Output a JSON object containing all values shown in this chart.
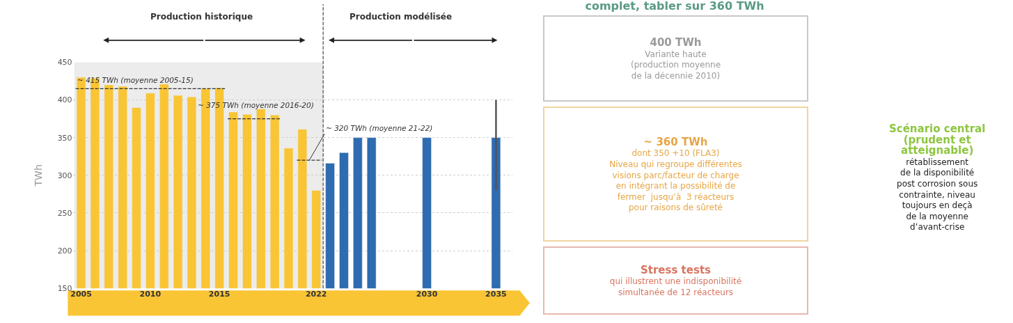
{
  "chart_data": {
    "type": "bar",
    "title": "complet, tabler sur 360 TWh",
    "ylabel": "TWh",
    "series": [
      {
        "color": "#f9c534",
        "x": [
          2005,
          2006,
          2007,
          2008,
          2009,
          2010,
          2011,
          2012,
          2013,
          2014,
          2015,
          2016,
          2017,
          2018,
          2019,
          2020,
          2021,
          2022
        ],
        "values": [
          430,
          429,
          420,
          418,
          390,
          409,
          421,
          406,
          404,
          415,
          416,
          384,
          381,
          388,
          380,
          336,
          361,
          280
        ]
      },
      {
        "color": "#2e6bb0",
        "x": [
          2023,
          2024,
          2025,
          2026,
          2030,
          2035
        ],
        "values": [
          316,
          330,
          350,
          350,
          350,
          350
        ],
        "errors": [
          null,
          null,
          null,
          null,
          null,
          [
            280,
            400
          ]
        ]
      },
      {
        "type": "line",
        "color": "#333333",
        "line_style": "dashed",
        "x": [
          2004.6,
          2015.4
        ],
        "values": [
          415,
          415
        ]
      },
      {
        "type": "line",
        "color": "#333333",
        "line_style": "dashed",
        "x": [
          2015.6,
          2019.4
        ],
        "values": [
          375,
          375
        ]
      },
      {
        "type": "line",
        "color": "#333333",
        "line_style": "dashed",
        "x": [
          2020.6,
          2022.4
        ],
        "values": [
          320,
          320
        ]
      }
    ],
    "xlim": [
      2004.4,
      2036.2
    ],
    "xticks": [
      2005,
      2010,
      2015,
      2022,
      2030,
      2035
    ],
    "ylim": [
      150,
      450
    ],
    "yticks": [
      150,
      200,
      250,
      300,
      350,
      400,
      450
    ],
    "grid": "y",
    "bands": [
      {
        "axis": "x",
        "from": 2004.5,
        "to": 2022.5,
        "color": "#ececec"
      }
    ],
    "ref_lines": [
      {
        "axis": "x",
        "value": 2022.5,
        "color": "#555555",
        "line_style": "dashed"
      }
    ],
    "annotations": [
      "Production historique",
      "Production modélisée",
      {
        "text": "~ 415 TWh (moyenne 2005-15)",
        "x": 2004.6,
        "y": 415
      },
      {
        "text": "~ 375 TWh (moyenne 2016-20)",
        "x": 2015.6,
        "y": 375
      },
      {
        "text": "~ 320 TWh (moyenne 21-22)",
        "x": 2021.5,
        "y": 320
      },
      "400 TWh\nVariante haute\n(production moyenne\nde la décennie 2010)",
      "~ 360 TWh\ndont 350 +10 (FLA3)\nNiveau qui regroupe différentes\nvisions parc/facteur de charge\nen intégrant la possibilité de\nfermer  jusqu’à  3 réacteurs\npour raisons de sûreté",
      "Stress tests\nqui illustrent une indisponibilité\nsimultanée de 12 réacteurs",
      "Scénario central\n(prudent et\natteignable)\nrétablissement\nde la disponibilité\npost corrosion sous\ncontrainte, niveau\ntoujours en deçà\nde la moyenne\nd’avant-crise"
    ]
  }
}
